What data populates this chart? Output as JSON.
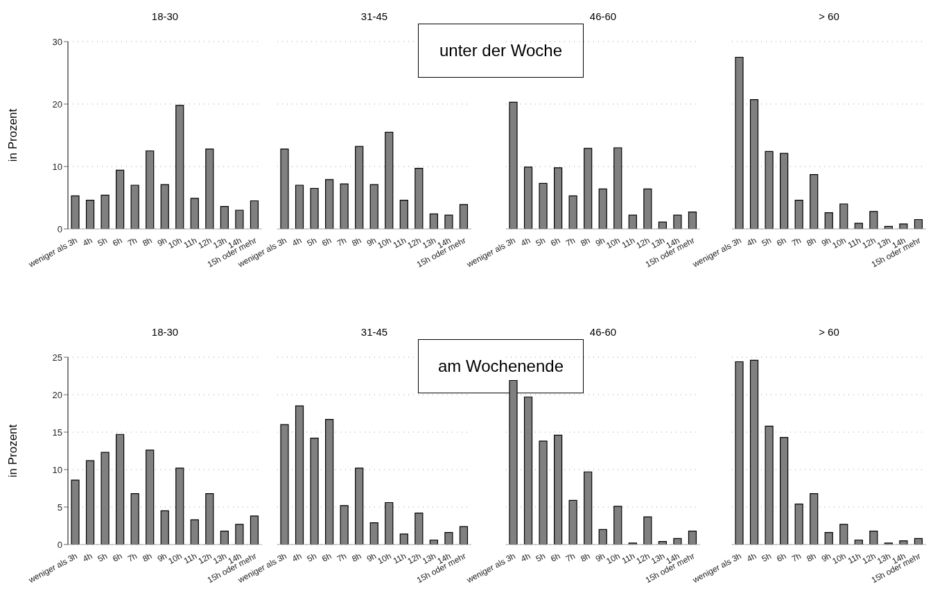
{
  "chart_data": [
    {
      "type": "bar",
      "title": "18-30",
      "ylabel": "in Prozent",
      "categories": [
        "weniger als 3h",
        "4h",
        "5h",
        "6h",
        "7h",
        "8h",
        "9h",
        "10h",
        "11h",
        "12h",
        "13h",
        "14h",
        "15h oder mehr"
      ],
      "values": [
        5.3,
        4.6,
        5.4,
        9.4,
        7.0,
        12.5,
        7.1,
        19.8,
        4.9,
        12.8,
        3.6,
        3.0,
        4.5
      ],
      "color": "#808080",
      "ylim": [
        0,
        30
      ],
      "yticks": [
        0,
        10,
        20,
        30
      ],
      "grid": "y"
    },
    {
      "type": "bar",
      "title": "31-45",
      "annotations": [
        "unter der Woche"
      ],
      "categories": [
        "weniger als 3h",
        "4h",
        "5h",
        "6h",
        "7h",
        "8h",
        "9h",
        "10h",
        "11h",
        "12h",
        "13h",
        "14h",
        "15h oder mehr"
      ],
      "values": [
        12.8,
        7.0,
        6.5,
        7.9,
        7.2,
        13.2,
        7.1,
        15.5,
        4.6,
        9.7,
        2.4,
        2.2,
        3.9
      ],
      "color": "#808080",
      "ylim": [
        0,
        30
      ],
      "yticks": [
        0,
        10,
        20,
        30
      ],
      "grid": "y",
      "tick_labels": "x"
    },
    {
      "type": "bar",
      "title": "46-60",
      "categories": [
        "weniger als 3h",
        "4h",
        "5h",
        "6h",
        "7h",
        "8h",
        "9h",
        "10h",
        "11h",
        "12h",
        "13h",
        "14h",
        "15h oder mehr"
      ],
      "values": [
        20.3,
        9.9,
        7.3,
        9.8,
        5.3,
        12.9,
        6.4,
        13.0,
        2.2,
        6.4,
        1.1,
        2.2,
        2.7
      ],
      "color": "#808080",
      "ylim": [
        0,
        30
      ],
      "yticks": [
        0,
        10,
        20,
        30
      ],
      "grid": "y",
      "tick_labels": "x"
    },
    {
      "type": "bar",
      "title": "> 60",
      "categories": [
        "weniger als 3h",
        "4h",
        "5h",
        "6h",
        "7h",
        "8h",
        "9h",
        "10h",
        "11h",
        "12h",
        "13h",
        "14h",
        "15h oder mehr"
      ],
      "values": [
        27.5,
        20.7,
        12.4,
        12.1,
        4.6,
        8.7,
        2.6,
        4.0,
        0.9,
        2.8,
        0.4,
        0.8,
        1.5
      ],
      "color": "#808080",
      "ylim": [
        0,
        30
      ],
      "yticks": [
        0,
        10,
        20,
        30
      ],
      "grid": "y",
      "tick_labels": "x"
    },
    {
      "type": "bar",
      "title": "18-30",
      "ylabel": "in Prozent",
      "categories": [
        "weniger als 3h",
        "4h",
        "5h",
        "6h",
        "7h",
        "8h",
        "9h",
        "10h",
        "11h",
        "12h",
        "13h",
        "14h",
        "15h oder mehr"
      ],
      "values": [
        8.6,
        11.2,
        12.3,
        14.7,
        6.8,
        12.6,
        4.5,
        10.2,
        3.3,
        6.8,
        1.8,
        2.7,
        3.8
      ],
      "color": "#808080",
      "ylim": [
        0,
        25
      ],
      "yticks": [
        0,
        5,
        10,
        15,
        20,
        25
      ],
      "grid": "y"
    },
    {
      "type": "bar",
      "title": "31-45",
      "annotations": [
        "am Wochenende"
      ],
      "categories": [
        "weniger als 3h",
        "4h",
        "5h",
        "6h",
        "7h",
        "8h",
        "9h",
        "10h",
        "11h",
        "12h",
        "13h",
        "14h",
        "15h oder mehr"
      ],
      "values": [
        16.0,
        18.5,
        14.2,
        16.7,
        5.2,
        10.2,
        2.9,
        5.6,
        1.4,
        4.2,
        0.6,
        1.6,
        2.4
      ],
      "color": "#808080",
      "ylim": [
        0,
        25
      ],
      "yticks": [
        0,
        5,
        10,
        15,
        20,
        25
      ],
      "grid": "y",
      "tick_labels": "x"
    },
    {
      "type": "bar",
      "title": "46-60",
      "categories": [
        "weniger als 3h",
        "4h",
        "5h",
        "6h",
        "7h",
        "8h",
        "9h",
        "10h",
        "11h",
        "12h",
        "13h",
        "14h",
        "15h oder mehr"
      ],
      "values": [
        21.9,
        19.7,
        13.8,
        14.6,
        5.9,
        9.7,
        2.0,
        5.1,
        0.2,
        3.7,
        0.4,
        0.8,
        1.8
      ],
      "color": "#808080",
      "ylim": [
        0,
        25
      ],
      "yticks": [
        0,
        5,
        10,
        15,
        20,
        25
      ],
      "grid": "y",
      "tick_labels": "x"
    },
    {
      "type": "bar",
      "title": "> 60",
      "categories": [
        "weniger als 3h",
        "4h",
        "5h",
        "6h",
        "7h",
        "8h",
        "9h",
        "10h",
        "11h",
        "12h",
        "13h",
        "14h",
        "15h oder mehr"
      ],
      "values": [
        24.4,
        24.6,
        15.8,
        14.3,
        5.4,
        6.8,
        1.6,
        2.7,
        0.6,
        1.8,
        0.2,
        0.5,
        0.8
      ],
      "color": "#808080",
      "ylim": [
        0,
        25
      ],
      "yticks": [
        0,
        5,
        10,
        15,
        20,
        25
      ],
      "grid": "y",
      "tick_labels": "x"
    }
  ]
}
